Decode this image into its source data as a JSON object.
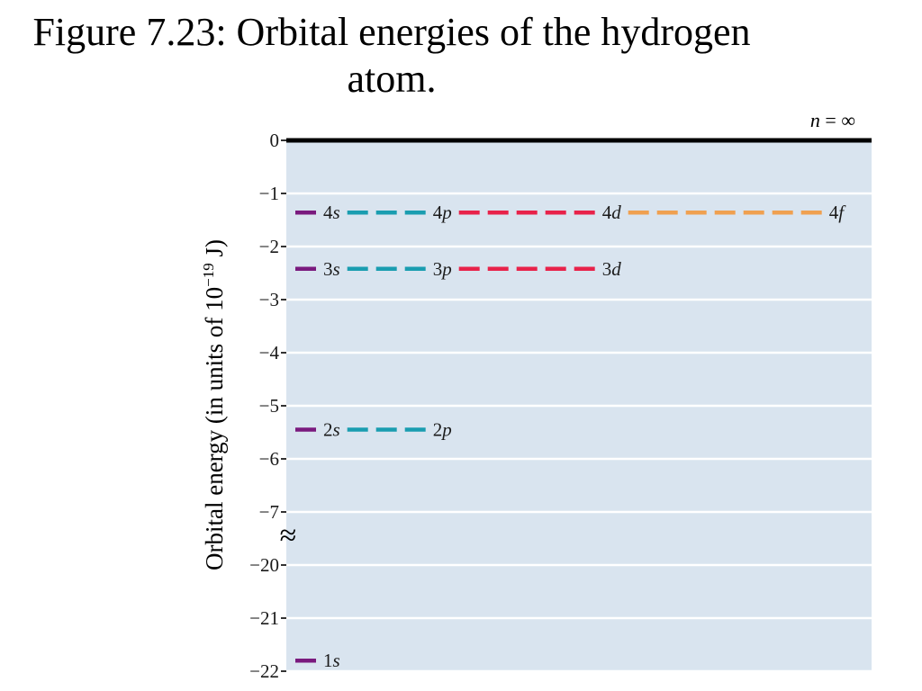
{
  "slide": {
    "title": "Figure 7.23: Orbital energies of the hydrogen atom."
  },
  "chart_data": {
    "type": "energy-level diagram",
    "title": "",
    "ylabel": "Orbital energy (in units of 10",
    "ylabel_exponent": "−19",
    "ylabel_suffix": " J)",
    "axis_break": true,
    "break_symbol": "≈",
    "ticks": [
      {
        "value": 0,
        "label": "0"
      },
      {
        "value": -1,
        "label": "−1"
      },
      {
        "value": -2,
        "label": "−2"
      },
      {
        "value": -3,
        "label": "−3"
      },
      {
        "value": -4,
        "label": "−4"
      },
      {
        "value": -5,
        "label": "−5"
      },
      {
        "value": -6,
        "label": "−6"
      },
      {
        "value": -7,
        "label": "−7"
      },
      {
        "value": -20,
        "label": "−20"
      },
      {
        "value": -21,
        "label": "−21"
      },
      {
        "value": -22,
        "label": "−22"
      }
    ],
    "limit_line": {
      "value": 0,
      "label_var": "n",
      "label_rest": " = ∞"
    },
    "levels": [
      {
        "n": 4,
        "energy": -1.36,
        "orbitals": [
          {
            "label": "4",
            "l": "s",
            "count": 1,
            "color": "#7a1a7e"
          },
          {
            "label": "4",
            "l": "p",
            "count": 3,
            "color": "#1a9db0"
          },
          {
            "label": "4",
            "l": "d",
            "count": 5,
            "color": "#e8224a"
          },
          {
            "label": "4",
            "l": "f",
            "count": 7,
            "color": "#f0a050"
          }
        ]
      },
      {
        "n": 3,
        "energy": -2.42,
        "orbitals": [
          {
            "label": "3",
            "l": "s",
            "count": 1,
            "color": "#7a1a7e"
          },
          {
            "label": "3",
            "l": "p",
            "count": 3,
            "color": "#1a9db0"
          },
          {
            "label": "3",
            "l": "d",
            "count": 5,
            "color": "#e8224a"
          }
        ]
      },
      {
        "n": 2,
        "energy": -5.45,
        "orbitals": [
          {
            "label": "2",
            "l": "s",
            "count": 1,
            "color": "#7a1a7e"
          },
          {
            "label": "2",
            "l": "p",
            "count": 3,
            "color": "#1a9db0"
          }
        ]
      },
      {
        "n": 1,
        "energy": -21.8,
        "orbitals": [
          {
            "label": "1",
            "l": "s",
            "count": 1,
            "color": "#7a1a7e"
          }
        ]
      }
    ],
    "colors": {
      "plot_bg": "#d9e4ef",
      "gridline": "#ffffff",
      "limit_line": "#000000",
      "text": "#1a1a1a"
    },
    "grid": true
  }
}
